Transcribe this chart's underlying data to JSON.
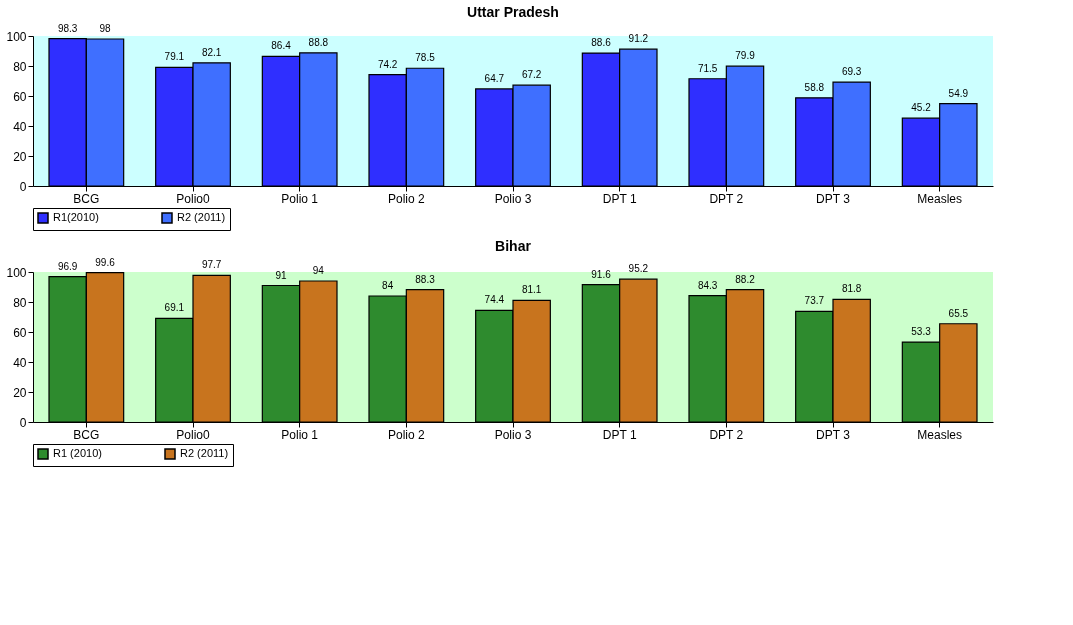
{
  "chart_data": [
    {
      "type": "bar",
      "title": "Uttar Pradesh",
      "categories": [
        "BCG",
        "Polio0",
        "Polio 1",
        "Polio 2",
        "Polio 3",
        "DPT 1",
        "DPT 2",
        "DPT 3",
        "Measles"
      ],
      "series": [
        {
          "name": "R1(2010)",
          "color": "#2f2fff",
          "values": [
            98.3,
            79.1,
            86.4,
            74.2,
            64.7,
            88.6,
            71.5,
            58.8,
            45.2
          ]
        },
        {
          "name": "R2 (2011)",
          "color": "#3f6fff",
          "values": [
            98,
            82.1,
            88.8,
            78.5,
            67.2,
            91.2,
            79.9,
            69.3,
            54.9
          ]
        }
      ],
      "ylim": [
        0,
        100
      ],
      "yticks": [
        0,
        20,
        40,
        60,
        80,
        100
      ],
      "grid": false,
      "legend": "bottom left",
      "data_labels": true
    },
    {
      "type": "bar",
      "title": "Bihar",
      "categories": [
        "BCG",
        "Polio0",
        "Polio 1",
        "Polio 2",
        "Polio 3",
        "DPT 1",
        "DPT 2",
        "DPT 3",
        "Measles"
      ],
      "series": [
        {
          "name": "R1 (2010)",
          "color": "#2e8b2e",
          "values": [
            96.9,
            69.1,
            91,
            84,
            74.4,
            91.6,
            84.3,
            73.7,
            53.3
          ]
        },
        {
          "name": "R2 (2011)",
          "color": "#c8741e",
          "values": [
            99.6,
            97.7,
            94,
            88.3,
            81.1,
            95.2,
            88.2,
            81.8,
            65.5
          ]
        }
      ],
      "ylim": [
        0,
        100
      ],
      "yticks": [
        0,
        20,
        40,
        60,
        80,
        100
      ],
      "grid": false,
      "legend": "bottom left",
      "data_labels": true
    }
  ]
}
